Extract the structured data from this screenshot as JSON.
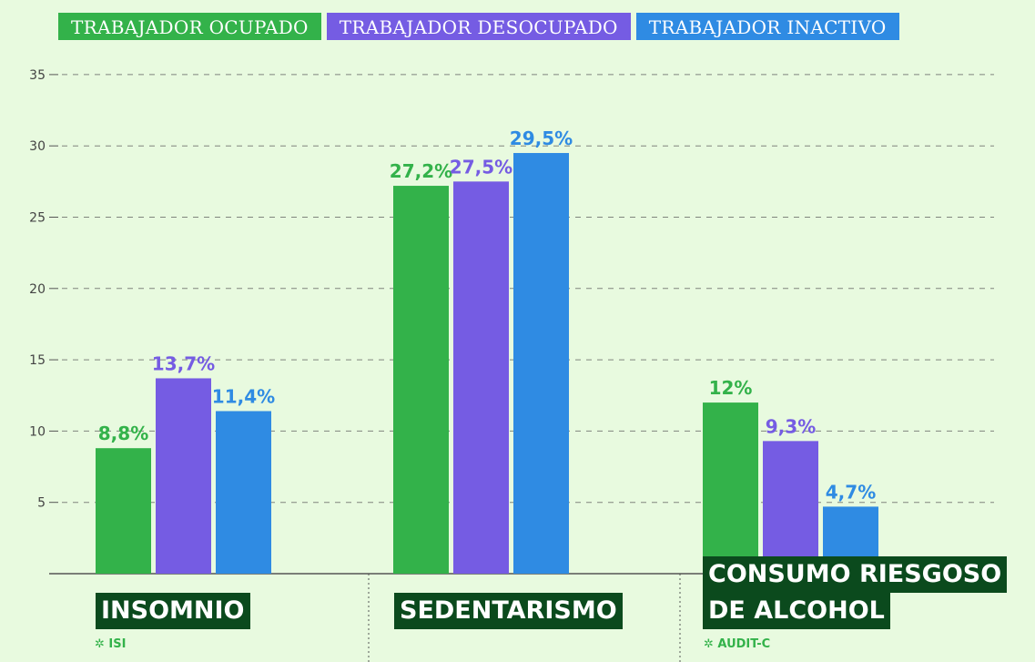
{
  "colors": {
    "background": "#e8fadf",
    "ocupado": "#33b24a",
    "desocupado": "#755ce3",
    "inactivo": "#2f8be3",
    "label_box": "#0b4a1d",
    "grid": "#555555"
  },
  "legend": [
    {
      "label": "TRABAJADOR OCUPADO",
      "color": "#33b24a"
    },
    {
      "label": "TRABAJADOR DESOCUPADO",
      "color": "#755ce3"
    },
    {
      "label": "TRABAJADOR INACTIVO",
      "color": "#2f8be3"
    }
  ],
  "categories_display": [
    {
      "lines": [
        "INSOMNIO"
      ],
      "note": "✲ ISI"
    },
    {
      "lines": [
        "SEDENTARISMO"
      ],
      "note": ""
    },
    {
      "lines": [
        "CONSUMO RIESGOSO",
        "DE ALCOHOL"
      ],
      "note": "✲ AUDIT-C"
    }
  ],
  "chart_data": {
    "type": "bar",
    "categories": [
      "INSOMNIO",
      "SEDENTARISMO",
      "CONSUMO RIESGOSO DE ALCOHOL"
    ],
    "series": [
      {
        "name": "TRABAJADOR OCUPADO",
        "values": [
          8.8,
          27.2,
          12
        ],
        "labels": [
          "8,8%",
          "27,2%",
          "12%"
        ]
      },
      {
        "name": "TRABAJADOR DESOCUPADO",
        "values": [
          13.7,
          27.5,
          9.3
        ],
        "labels": [
          "13,7%",
          "27,5%",
          "9,3%"
        ]
      },
      {
        "name": "TRABAJADOR INACTIVO",
        "values": [
          11.4,
          29.5,
          4.7
        ],
        "labels": [
          "11,4%",
          "29,5%",
          "4,7%"
        ]
      }
    ],
    "ylim": [
      0,
      35
    ],
    "yticks": [
      5,
      10,
      15,
      20,
      25,
      30,
      35
    ],
    "grid": true,
    "legend_position": "top-left"
  }
}
